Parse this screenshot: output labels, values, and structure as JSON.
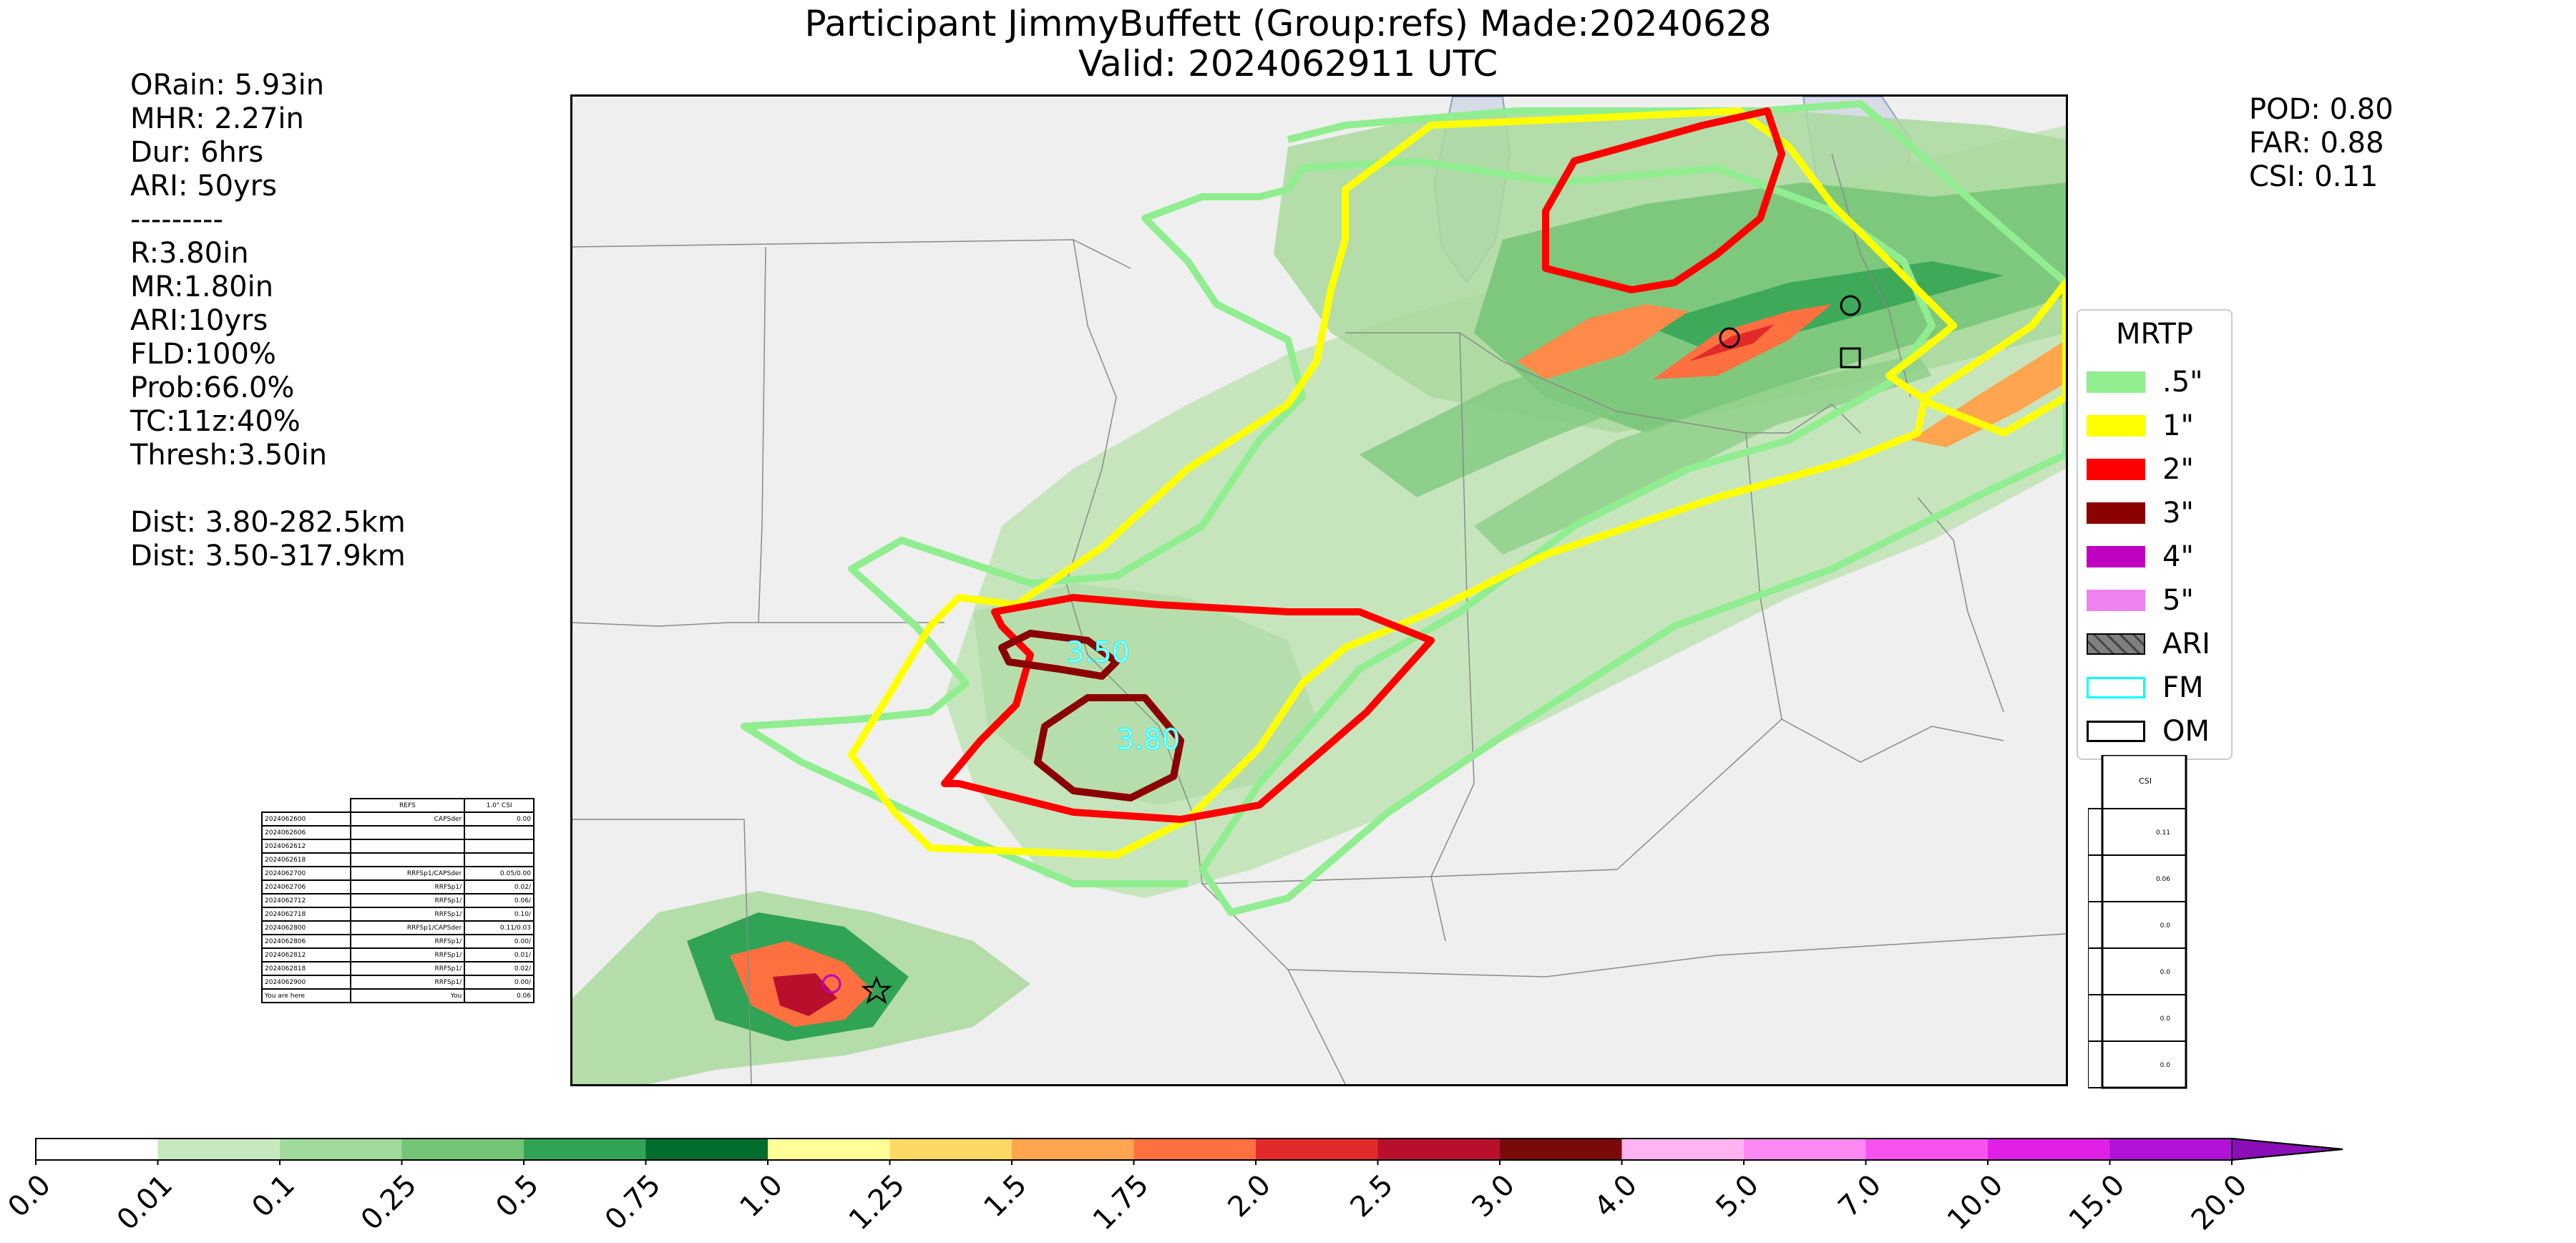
{
  "title": {
    "line1": "Participant JimmyBuffett (Group:refs) Made:20240628",
    "line2": "Valid: 2024062911 UTC"
  },
  "stats_left": [
    "ORain: 5.93in",
    "MHR: 2.27in",
    "Dur: 6hrs",
    "ARI: 50yrs",
    "---------",
    "R:3.80in",
    "MR:1.80in",
    "ARI:10yrs",
    "FLD:100%",
    "Prob:66.0%",
    "TC:11z:40%",
    "Thresh:3.50in",
    " ",
    "Dist: 3.80-282.5km",
    "Dist: 3.50-317.9km"
  ],
  "stats_right": [
    "POD: 0.80",
    "FAR: 0.88",
    "CSI: 0.11"
  ],
  "map": {
    "contour_labels": [
      "3.50",
      "3.80"
    ],
    "contour_colors": {
      "c05": "#90ee90",
      "c1": "#ffff00",
      "c2": "#ff0000",
      "c3": "#8b0000"
    }
  },
  "legend": {
    "title": "MRTP",
    "items": [
      {
        "label": ".5\"",
        "color": "#90ee90",
        "kind": "fill"
      },
      {
        "label": "1\"",
        "color": "#ffff00",
        "kind": "fill"
      },
      {
        "label": "2\"",
        "color": "#ff0000",
        "kind": "fill"
      },
      {
        "label": "3\"",
        "color": "#8b0000",
        "kind": "fill"
      },
      {
        "label": "4\"",
        "color": "#c000c0",
        "kind": "fill"
      },
      {
        "label": "5\"",
        "color": "#ee82ee",
        "kind": "fill"
      },
      {
        "label": "ARI",
        "color": "#808080",
        "kind": "hatch"
      },
      {
        "label": "FM",
        "color": "#00ffff",
        "kind": "outline"
      },
      {
        "label": "OM",
        "color": "#000000",
        "kind": "outline"
      }
    ]
  },
  "table": {
    "header": [
      "",
      "REFS",
      "1.0\" CSI"
    ],
    "rows": [
      [
        "2024062600",
        "CAPSder",
        "0.00"
      ],
      [
        "2024062606",
        "",
        ""
      ],
      [
        "2024062612",
        "",
        ""
      ],
      [
        "2024062618",
        "",
        ""
      ],
      [
        "2024062700",
        "RRFSp1/CAPSder",
        "0.05/0.00"
      ],
      [
        "2024062706",
        "RRFSp1/",
        "0.02/"
      ],
      [
        "2024062712",
        "RRFSp1/",
        "0.06/"
      ],
      [
        "2024062718",
        "RRFSp1/",
        "0.10/"
      ],
      [
        "2024062800",
        "RRFSp1/CAPSder",
        "0.11/0.03"
      ],
      [
        "2024062806",
        "RRFSp1/",
        "0.00/"
      ],
      [
        "2024062812",
        "RRFSp1/",
        "0.01/"
      ],
      [
        "2024062818",
        "RRFSp1/",
        "0.02/"
      ],
      [
        "2024062900",
        "RRFSp1/",
        "0.00/"
      ],
      [
        "You are here",
        "You",
        "0.06"
      ]
    ]
  },
  "side_table": {
    "header": "CSI",
    "values": [
      "0.11",
      "0.06",
      "0.0",
      "0.0",
      "0.0",
      "0.0"
    ]
  },
  "colorbar": {
    "ticks": [
      "0.0",
      "0.01",
      "0.1",
      "0.25",
      "0.5",
      "0.75",
      "1.0",
      "1.25",
      "1.5",
      "1.75",
      "2.0",
      "2.5",
      "3.0",
      "4.0",
      "5.0",
      "7.0",
      "10.0",
      "15.0",
      "20.0"
    ],
    "colors": [
      "#ffffff",
      "#c7e9c0",
      "#a1d99b",
      "#74c476",
      "#31a354",
      "#006d2c",
      "#ffff99",
      "#ffd966",
      "#ffa54f",
      "#ff7040",
      "#e32a2a",
      "#b8102c",
      "#7a0a0a",
      "#ffb3f0",
      "#ff88f2",
      "#f552f0",
      "#e020e6",
      "#b012d8"
    ],
    "extend_color": "#8a0fb8"
  }
}
